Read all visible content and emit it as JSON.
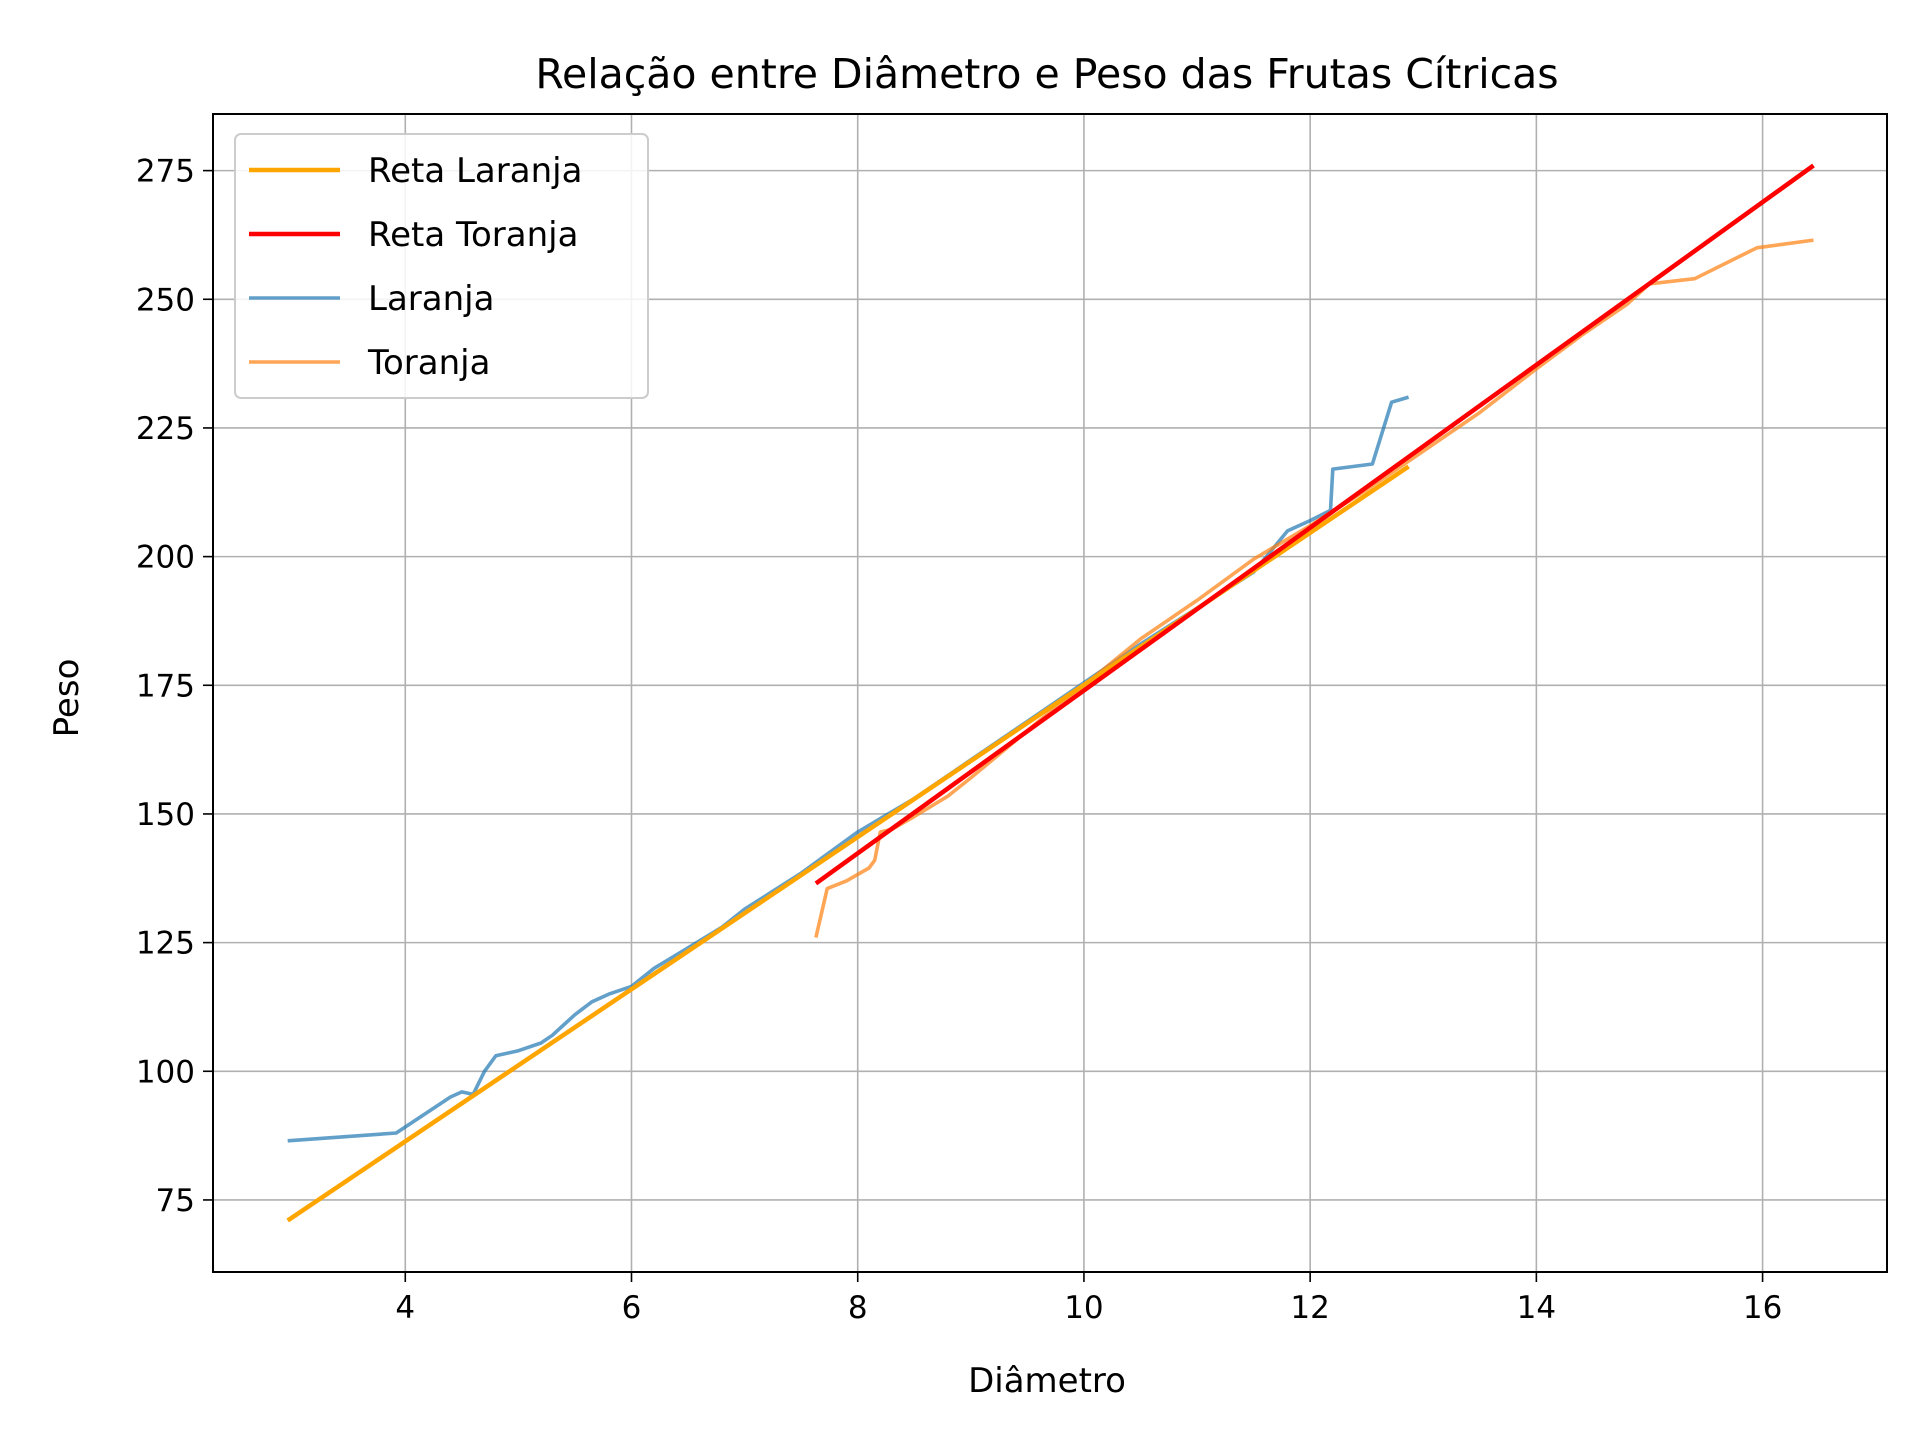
{
  "chart_data": {
    "type": "line",
    "title": "Relação entre Diâmetro e Peso das Frutas Cítricas",
    "xlabel": "Diâmetro",
    "ylabel": "Peso",
    "xlim": [
      2.3,
      17.1
    ],
    "ylim": [
      61,
      286
    ],
    "xticks": [
      4,
      6,
      8,
      10,
      12,
      14,
      16
    ],
    "yticks": [
      75,
      100,
      125,
      150,
      175,
      200,
      225,
      250,
      275
    ],
    "xtick_labels": [
      "4",
      "6",
      "8",
      "10",
      "12",
      "14",
      "16"
    ],
    "ytick_labels": [
      "75",
      "100",
      "125",
      "150",
      "175",
      "200",
      "225",
      "250",
      "275"
    ],
    "grid": true,
    "legend_position": "upper-left",
    "series": [
      {
        "name": "Reta Laranja",
        "color": "#ffa500",
        "kind": "fit",
        "x": [
          2.96,
          12.87
        ],
        "y": [
          71.0,
          217.5
        ]
      },
      {
        "name": "Reta Toranja",
        "color": "#ff0000",
        "kind": "fit",
        "x": [
          7.63,
          16.45
        ],
        "y": [
          136.5,
          276.0
        ]
      },
      {
        "name": "Laranja",
        "color": "#1f77b4",
        "kind": "data",
        "x": [
          2.96,
          3.92,
          4.4,
          4.5,
          4.6,
          4.7,
          4.8,
          5.0,
          5.2,
          5.3,
          5.4,
          5.5,
          5.65,
          5.8,
          6.0,
          6.2,
          6.5,
          6.8,
          7.0,
          7.5,
          8.0,
          8.5,
          9.0,
          9.5,
          10.0,
          10.5,
          11.0,
          11.5,
          11.8,
          12.0,
          12.18,
          12.2,
          12.55,
          12.72,
          12.87
        ],
        "y": [
          86.5,
          88.0,
          95.0,
          96.0,
          95.5,
          100.0,
          103.0,
          104.0,
          105.5,
          107.0,
          109.0,
          111.0,
          113.5,
          115.0,
          116.5,
          120.0,
          124.0,
          128.0,
          131.5,
          138.5,
          146.5,
          153.0,
          160.5,
          168.0,
          175.5,
          183.0,
          190.0,
          197.0,
          205.0,
          207.0,
          209.0,
          217.0,
          218.0,
          230.0,
          231.0
        ]
      },
      {
        "name": "Toranja",
        "color": "#ff7f0e",
        "kind": "data",
        "x": [
          7.63,
          7.73,
          7.9,
          8.1,
          8.15,
          8.2,
          8.3,
          8.5,
          8.8,
          9.0,
          9.3,
          9.6,
          10.0,
          10.5,
          11.0,
          11.5,
          12.0,
          12.5,
          13.0,
          13.5,
          14.0,
          14.4,
          14.8,
          15.0,
          15.4,
          15.95,
          16.45
        ],
        "y": [
          126.0,
          135.5,
          137.0,
          139.5,
          141.0,
          146.5,
          147.0,
          149.5,
          153.5,
          157.0,
          162.5,
          168.0,
          175.0,
          184.0,
          191.5,
          199.5,
          206.0,
          213.0,
          220.5,
          228.0,
          236.5,
          243.0,
          249.0,
          253.0,
          254.0,
          260.0,
          261.5
        ]
      }
    ]
  }
}
